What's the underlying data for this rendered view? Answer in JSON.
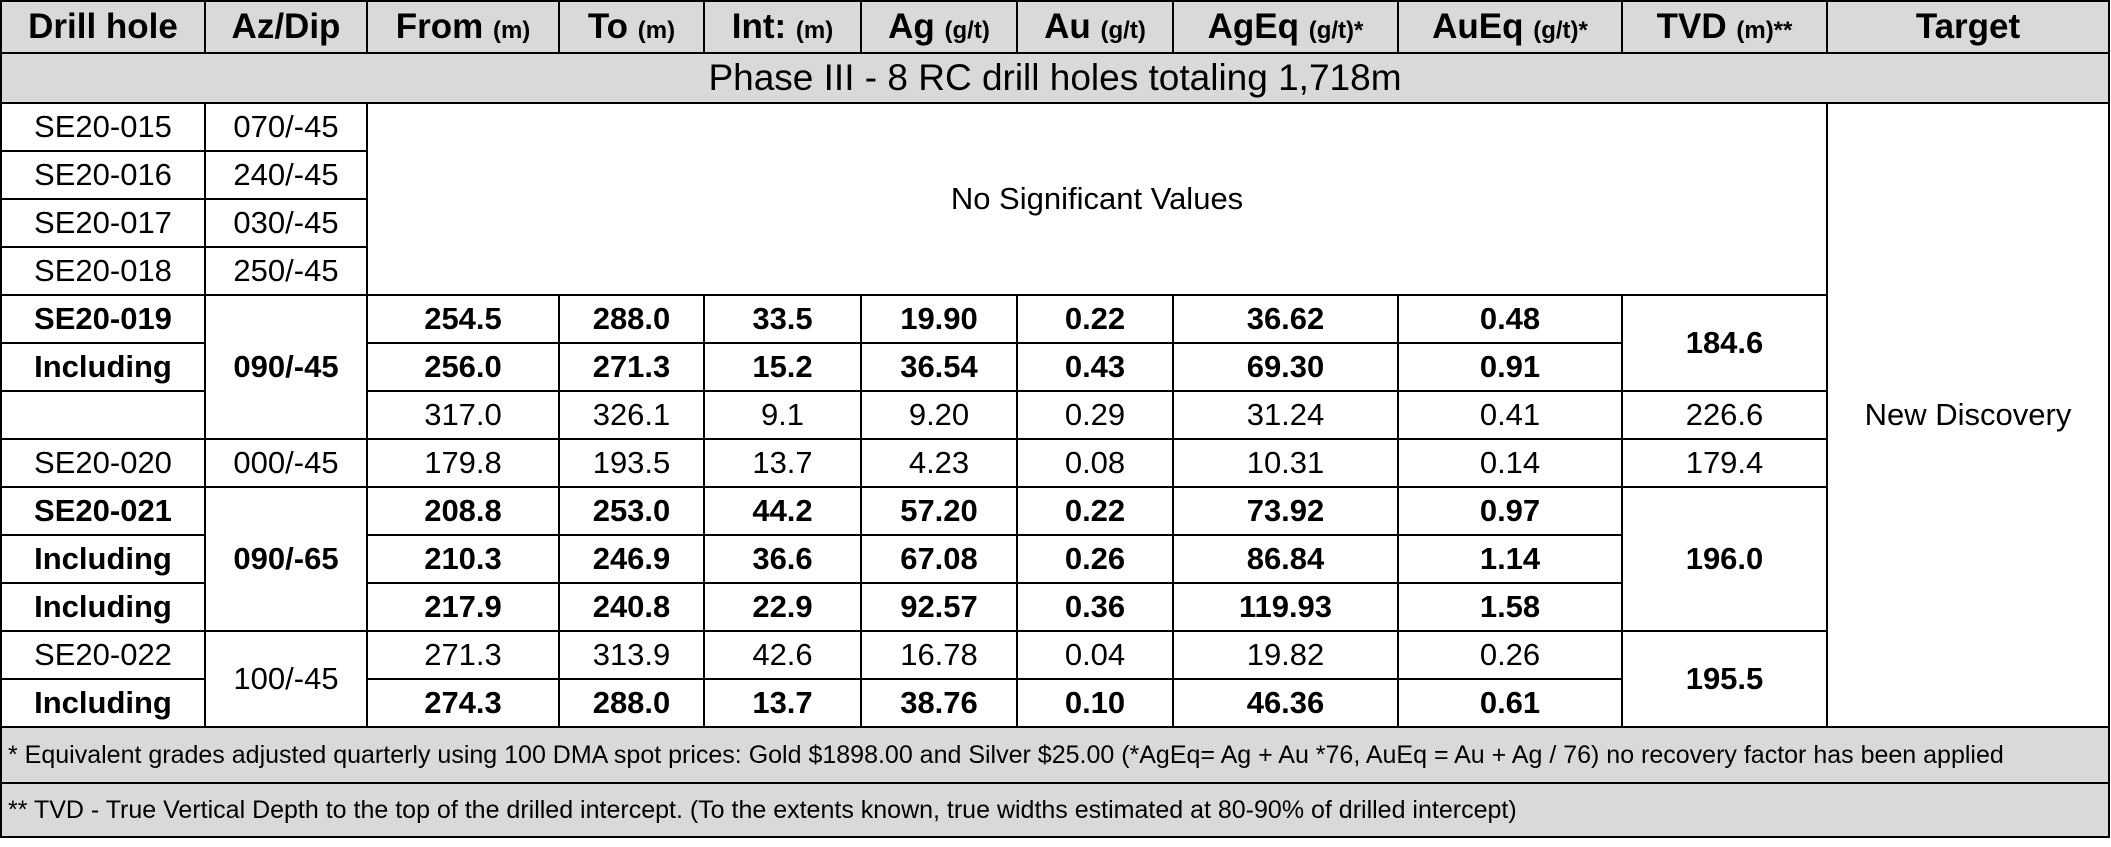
{
  "headers": {
    "drill_hole": "Drill hole",
    "az_dip": "Az/Dip",
    "from": "From",
    "from_unit": "(m)",
    "to": "To",
    "to_unit": "(m)",
    "int": "Int:",
    "int_unit": "(m)",
    "ag": "Ag",
    "ag_unit": "(g/t)",
    "au": "Au",
    "au_unit": "(g/t)",
    "ageq": "AgEq",
    "ageq_unit": "(g/t)*",
    "aueq": "AuEq",
    "aueq_unit": "(g/t)*",
    "tvd": "TVD",
    "tvd_unit": "(m)**",
    "target": "Target"
  },
  "phase_title": "Phase III - 8 RC drill holes totaling 1,718m",
  "no_significant": "No Significant Values",
  "target_label": "New Discovery",
  "nsv_holes": [
    {
      "hole": "SE20-015",
      "azdip": "070/-45"
    },
    {
      "hole": "SE20-016",
      "azdip": "240/-45"
    },
    {
      "hole": "SE20-017",
      "azdip": "030/-45"
    },
    {
      "hole": "SE20-018",
      "azdip": "250/-45"
    }
  ],
  "rows": [
    {
      "hole": "SE20-019",
      "from": "254.5",
      "to": "288.0",
      "int": "33.5",
      "ag": "19.90",
      "au": "0.22",
      "ageq": "36.62",
      "aueq": "0.48"
    },
    {
      "hole": "Including",
      "from": "256.0",
      "to": "271.3",
      "int": "15.2",
      "ag": "36.54",
      "au": "0.43",
      "ageq": "69.30",
      "aueq": "0.91"
    },
    {
      "hole": "",
      "from": "317.0",
      "to": "326.1",
      "int": "9.1",
      "ag": "9.20",
      "au": "0.29",
      "ageq": "31.24",
      "aueq": "0.41"
    },
    {
      "hole": "SE20-020",
      "from": "179.8",
      "to": "193.5",
      "int": "13.7",
      "ag": "4.23",
      "au": "0.08",
      "ageq": "10.31",
      "aueq": "0.14"
    },
    {
      "hole": "SE20-021",
      "from": "208.8",
      "to": "253.0",
      "int": "44.2",
      "ag": "57.20",
      "au": "0.22",
      "ageq": "73.92",
      "aueq": "0.97"
    },
    {
      "hole": "Including",
      "from": "210.3",
      "to": "246.9",
      "int": "36.6",
      "ag": "67.08",
      "au": "0.26",
      "ageq": "86.84",
      "aueq": "1.14"
    },
    {
      "hole": "Including",
      "from": "217.9",
      "to": "240.8",
      "int": "22.9",
      "ag": "92.57",
      "au": "0.36",
      "ageq": "119.93",
      "aueq": "1.58"
    },
    {
      "hole": "SE20-022",
      "from": "271.3",
      "to": "313.9",
      "int": "42.6",
      "ag": "16.78",
      "au": "0.04",
      "ageq": "19.82",
      "aueq": "0.26"
    },
    {
      "hole": "Including",
      "from": "274.3",
      "to": "288.0",
      "int": "13.7",
      "ag": "38.76",
      "au": "0.10",
      "ageq": "46.36",
      "aueq": "0.61"
    }
  ],
  "azdip_groups": {
    "se20_019": "090/-45",
    "se20_020": "000/-45",
    "se20_021": "090/-65",
    "se20_022": "100/-45"
  },
  "tvd_values": {
    "se20_019": "184.6",
    "se20_019b": "226.6",
    "se20_020": "179.4",
    "se20_021": "196.0",
    "se20_022": "195.5"
  },
  "notes": [
    "* Equivalent grades adjusted quarterly using 100 DMA spot prices: Gold $1898.00 and Silver $25.00 (*AgEq= Ag + Au *76, AuEq = Au + Ag / 76) no recovery factor has been applied",
    "** TVD - True Vertical Depth to the top of the drilled intercept. (To the extents known, true widths estimated at 80-90% of drilled intercept)"
  ]
}
